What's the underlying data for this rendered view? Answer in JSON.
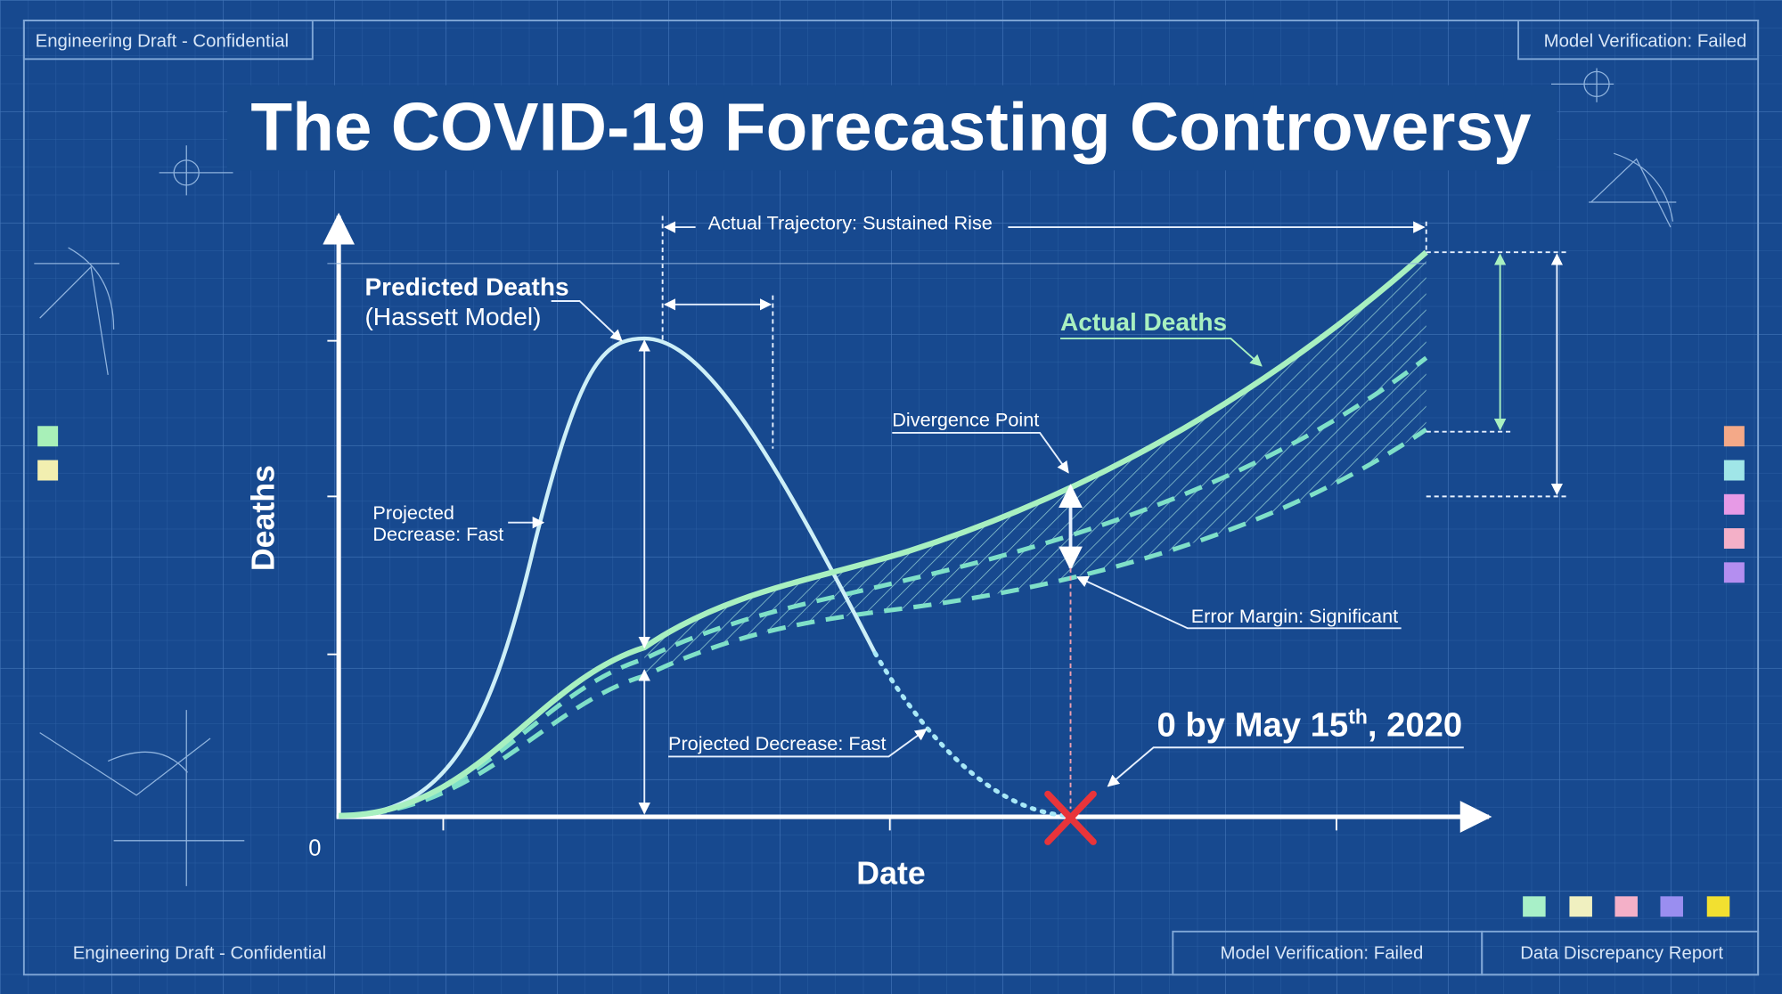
{
  "header": {
    "left": "Engineering Draft - Confidential",
    "right": "Model Verification: Failed"
  },
  "title": "The COVID-19 Forecasting Controversy",
  "axes": {
    "y_label": "Deaths",
    "x_label": "Date",
    "origin": "0"
  },
  "annotations": {
    "trajectory": "Actual Trajectory: Sustained Rise",
    "predicted_title": "Predicted Deaths",
    "predicted_subtitle": "(Hassett Model)",
    "actual": "Actual Deaths",
    "divergence": "Divergence Point",
    "projected_left": [
      "Projected",
      "Decrease: Fast"
    ],
    "error_margin": "Error Margin: Significant",
    "projected_bottom": "Projected Decrease: Fast",
    "zero_claim": {
      "main": "0 by May 15",
      "sup": "th",
      "tail": ", 2020"
    }
  },
  "footer": {
    "left": "Engineering Draft - Confidential",
    "middle": "Model Verification: Failed",
    "right": "Data Discrepancy Report"
  }
}
